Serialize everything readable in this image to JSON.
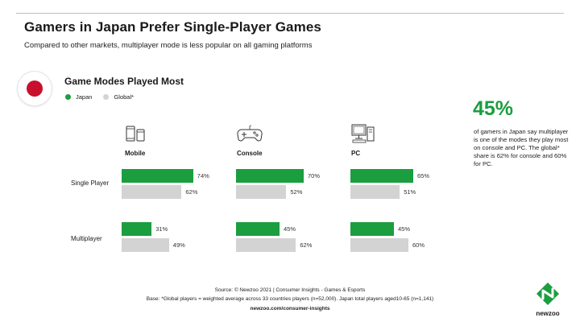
{
  "header": {
    "title": "Gamers in Japan Prefer Single-Player Games",
    "subtitle": "Compared to other markets, multiplayer mode is less popular on all gaming platforms"
  },
  "chart": {
    "title": "Game Modes Played Most"
  },
  "colors": {
    "japan": "#1a9e3f",
    "global": "#d3d3d3",
    "flag_red": "#c8102e"
  },
  "icons": {
    "flag": "japan-flag-icon",
    "mobile": "mobile-phone-icon",
    "console": "gamepad-icon",
    "pc": "desktop-pc-icon",
    "logo": "newzoo-logo-icon"
  },
  "chart_data": {
    "type": "bar",
    "title": "Game Modes Played Most",
    "legend": [
      "Japan",
      "Global*"
    ],
    "legend_position": "top-left",
    "platforms": [
      "Mobile",
      "Console",
      "PC"
    ],
    "categories": [
      "Single Player",
      "Multiplayer"
    ],
    "series": [
      {
        "name": "Japan",
        "values": {
          "Mobile": [
            74,
            31
          ],
          "Console": [
            70,
            45
          ],
          "PC": [
            65,
            45
          ]
        }
      },
      {
        "name": "Global*",
        "values": {
          "Mobile": [
            62,
            49
          ],
          "Console": [
            52,
            62
          ],
          "PC": [
            51,
            60
          ]
        }
      }
    ],
    "value_unit": "%",
    "ylim": [
      0,
      100
    ],
    "grid": false
  },
  "callout": {
    "value": "45%",
    "text": "of gamers in Japan say multiplayer is one of the modes they play most on console and PC. The global* share is 62% for console and 60% for PC."
  },
  "footer": {
    "source": "Source: © Newzoo 2021 | Consumer Insights - Games & Esports",
    "base": "Base: *Global players = weighted average across 33 countries players (n=52,000). Japan total players aged10-65 (n=1,141)",
    "url": "newzoo.com/consumer-insights"
  },
  "logo": {
    "text": "newzoo"
  }
}
